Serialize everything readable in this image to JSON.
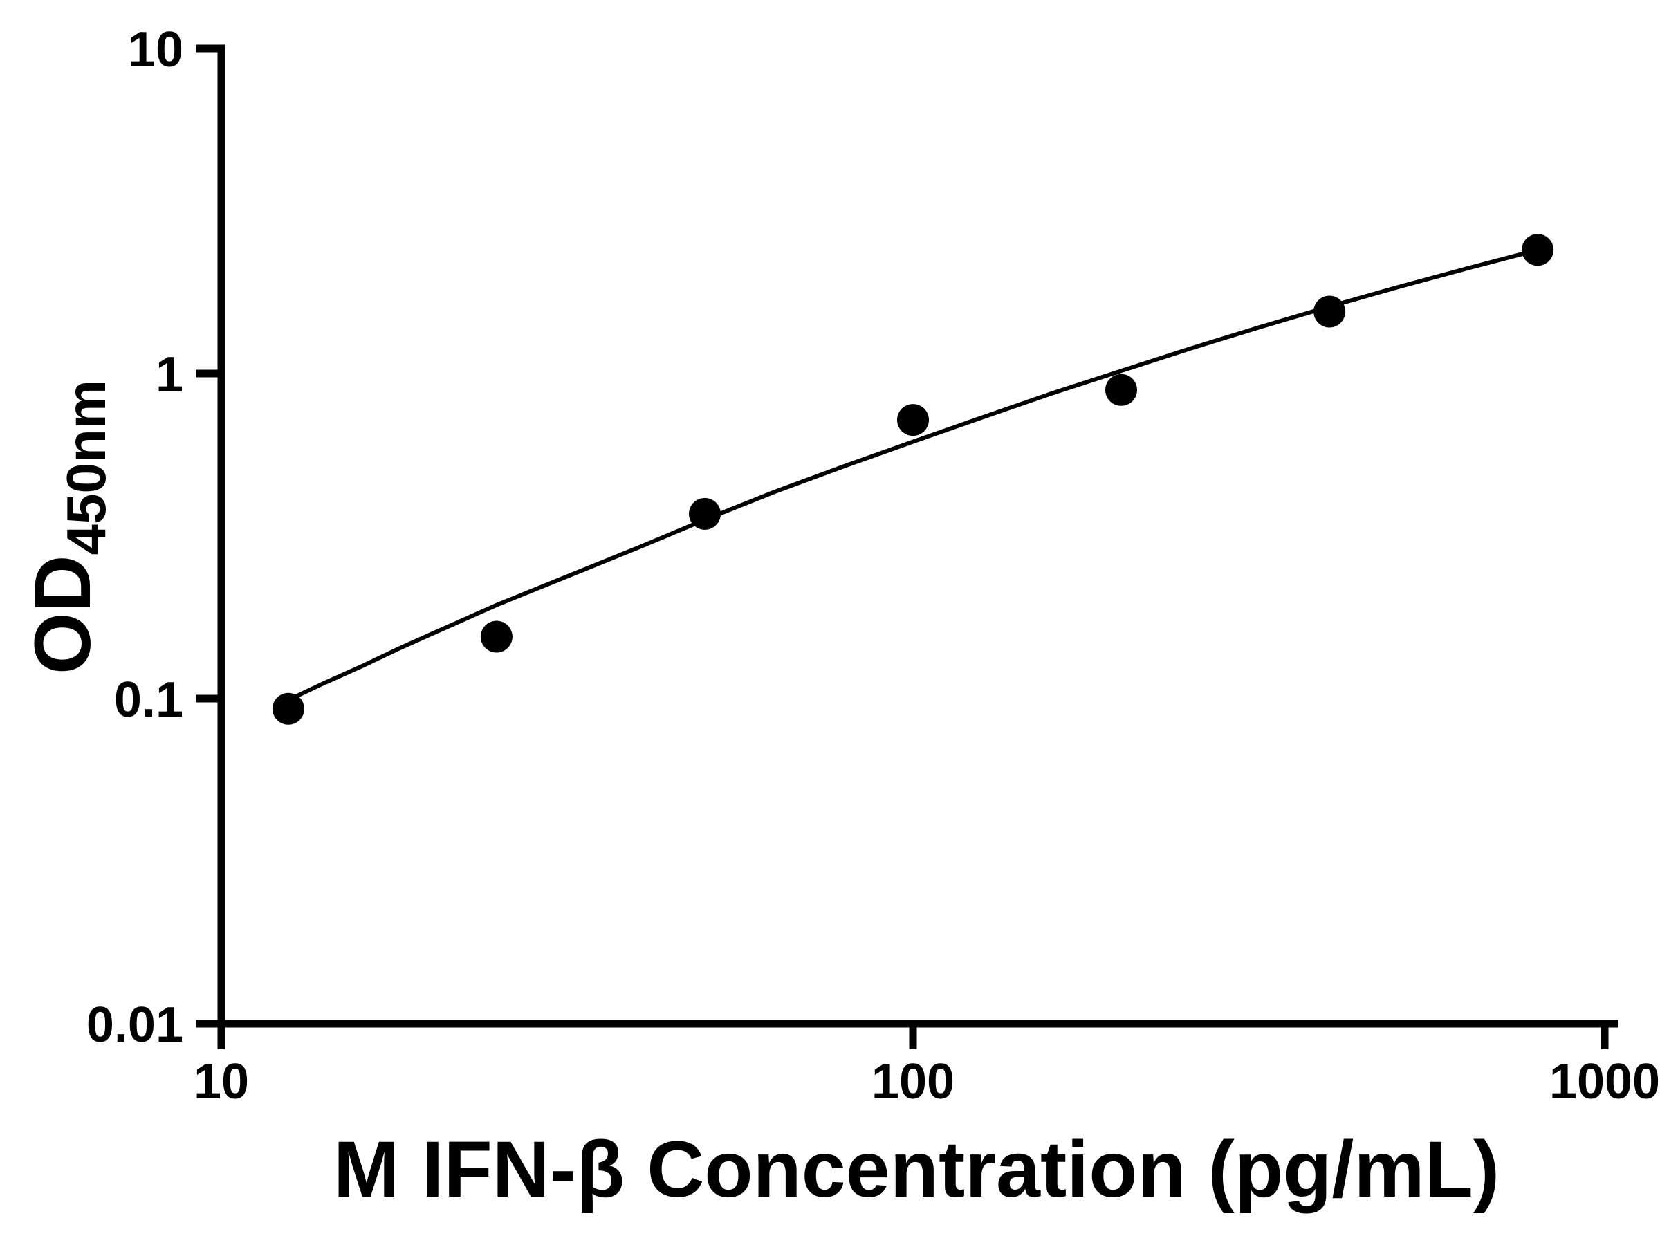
{
  "page": {
    "background": "#ffffff"
  },
  "chart_data": {
    "type": "scatter",
    "title": "",
    "xlabel": "M IFN-β Concentration (pg/mL)",
    "ylabel": "OD450nm",
    "ylabel_main": "OD",
    "ylabel_subscript": "450nm",
    "x_scale": "log10",
    "y_scale": "log10",
    "xlim": [
      10,
      1047
    ],
    "ylim": [
      0.01,
      10
    ],
    "grid": false,
    "legend": null,
    "axis_color": "#000000",
    "marker_color": "#000000",
    "curve_color": "#000000",
    "x_ticks": [
      {
        "value": 10,
        "label": "10"
      },
      {
        "value": 100,
        "label": "100"
      },
      {
        "value": 1000,
        "label": "1000"
      }
    ],
    "y_ticks": [
      {
        "value": 10,
        "label": "10"
      },
      {
        "value": 1,
        "label": "1"
      },
      {
        "value": 0.1,
        "label": "0.1"
      },
      {
        "value": 0.01,
        "label": "0.01"
      }
    ],
    "points": [
      {
        "x": 12.5,
        "y": 0.093
      },
      {
        "x": 25,
        "y": 0.155
      },
      {
        "x": 50,
        "y": 0.37
      },
      {
        "x": 100,
        "y": 0.72
      },
      {
        "x": 200,
        "y": 0.89
      },
      {
        "x": 400,
        "y": 1.55
      },
      {
        "x": 800,
        "y": 2.4
      }
    ],
    "fit_curve": [
      [
        12,
        0.095
      ],
      [
        14,
        0.111
      ],
      [
        16,
        0.126
      ],
      [
        18,
        0.142
      ],
      [
        20,
        0.157
      ],
      [
        25,
        0.194
      ],
      [
        32,
        0.24
      ],
      [
        40,
        0.291
      ],
      [
        50,
        0.355
      ],
      [
        63,
        0.432
      ],
      [
        80,
        0.521
      ],
      [
        100,
        0.617
      ],
      [
        126,
        0.733
      ],
      [
        158,
        0.866
      ],
      [
        200,
        1.019
      ],
      [
        251,
        1.191
      ],
      [
        316,
        1.385
      ],
      [
        398,
        1.601
      ],
      [
        501,
        1.84
      ],
      [
        631,
        2.102
      ],
      [
        794,
        2.39
      ],
      [
        820,
        2.43
      ]
    ]
  }
}
